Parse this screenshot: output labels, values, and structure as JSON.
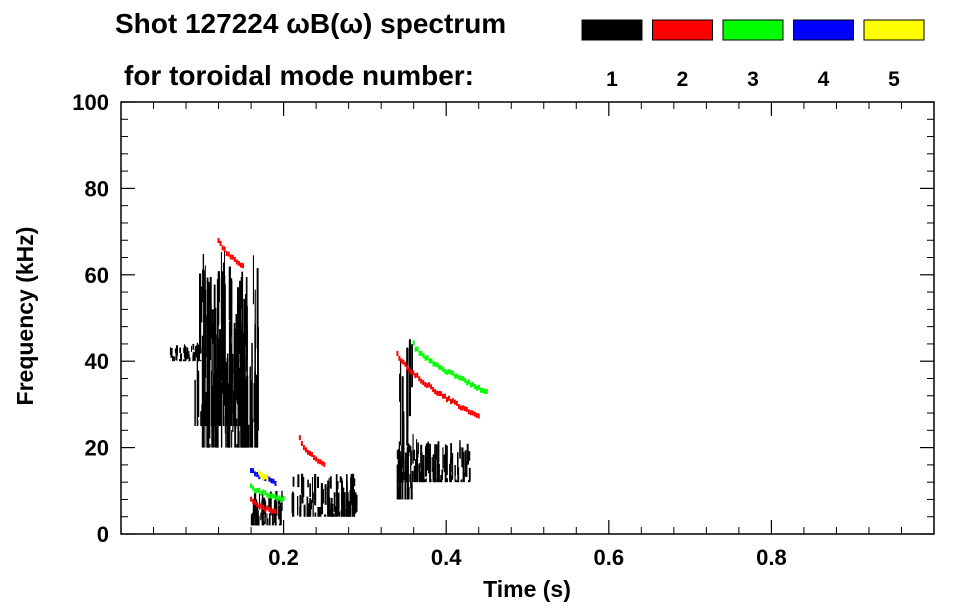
{
  "chart_data": {
    "type": "spectrogram",
    "title": "Shot 127224 ωB(ω) spectrum",
    "subtitle": "for toroidal mode number:",
    "xlabel": "Time (s)",
    "ylabel": "Frequency (kHz)",
    "xlim": [
      0.0,
      1.0
    ],
    "ylim": [
      0,
      100
    ],
    "xticks": [
      0.2,
      0.4,
      0.6,
      0.8
    ],
    "xtick_labels": [
      "0.2",
      "0.4",
      "0.6",
      "0.8"
    ],
    "yticks": [
      0,
      20,
      40,
      60,
      80,
      100
    ],
    "ytick_labels": [
      "0",
      "20",
      "40",
      "60",
      "80",
      "100"
    ],
    "legend": [
      {
        "label": "1",
        "color": "#000000"
      },
      {
        "label": "2",
        "color": "#ff0000"
      },
      {
        "label": "3",
        "color": "#00ff00"
      },
      {
        "label": "4",
        "color": "#0000ff"
      },
      {
        "label": "5",
        "color": "#ffff00"
      }
    ],
    "series": [
      {
        "mode": "1",
        "color": "#000000",
        "regions": [
          {
            "t": [
              0.06,
              0.1
            ],
            "f": [
              40,
              44
            ]
          },
          {
            "t": [
              0.09,
              0.15
            ],
            "f": [
              25,
              62
            ]
          },
          {
            "t": [
              0.1,
              0.17
            ],
            "f": [
              20,
              67
            ]
          },
          {
            "t": [
              0.16,
              0.2
            ],
            "f": [
              2,
              10
            ]
          },
          {
            "t": [
              0.21,
              0.29
            ],
            "f": [
              4,
              14
            ]
          },
          {
            "t": [
              0.34,
              0.43
            ],
            "f": [
              12,
              22
            ]
          },
          {
            "t": [
              0.34,
              0.36
            ],
            "f": [
              8,
              46
            ]
          }
        ]
      },
      {
        "mode": "2",
        "color": "#ff0000",
        "tracks": [
          {
            "t": [
              0.12,
              0.15
            ],
            "f": [
              68,
              62
            ]
          },
          {
            "t": [
              0.22,
              0.25
            ],
            "f": [
              22,
              16
            ]
          },
          {
            "t": [
              0.34,
              0.44
            ],
            "f": [
              42,
              27
            ]
          },
          {
            "t": [
              0.16,
              0.19
            ],
            "f": [
              8,
              5
            ]
          }
        ]
      },
      {
        "mode": "3",
        "color": "#00ff00",
        "tracks": [
          {
            "t": [
              0.36,
              0.45
            ],
            "f": [
              44,
              33
            ]
          },
          {
            "t": [
              0.16,
              0.2
            ],
            "f": [
              11,
              8
            ]
          }
        ]
      },
      {
        "mode": "4",
        "color": "#0000ff",
        "tracks": [
          {
            "t": [
              0.16,
              0.19
            ],
            "f": [
              15,
              12
            ]
          }
        ]
      },
      {
        "mode": "5",
        "color": "#ffff00",
        "tracks": [
          {
            "t": [
              0.17,
              0.18
            ],
            "f": [
              14,
              13
            ]
          }
        ]
      }
    ]
  }
}
